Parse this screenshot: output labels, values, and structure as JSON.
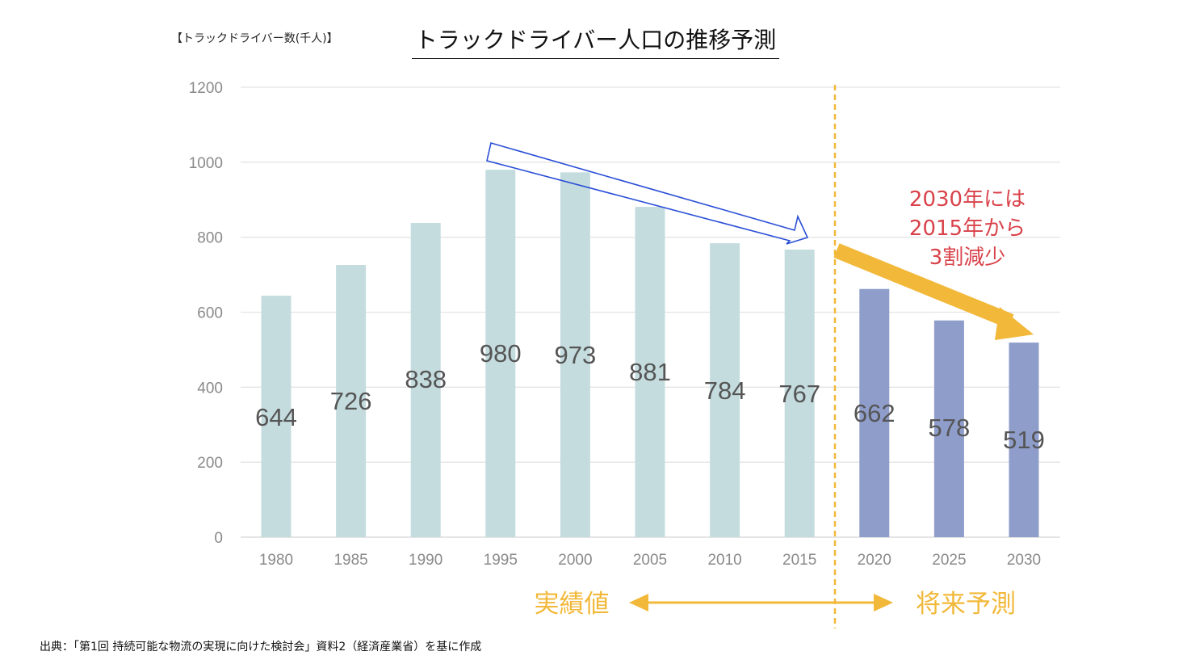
{
  "unit_label": "【トラックドライバー数(千人)】",
  "title": "トラックドライバー人口の推移予測",
  "source": "出典：「第1回 持続可能な物流の実現に向けた検討会」資料2（経済産業省）を基に作成",
  "annotation": [
    "2030年には",
    "2015年から",
    "3割減少"
  ],
  "sections": {
    "actual": "実績値",
    "forecast": "将来予測"
  },
  "colors": {
    "actual": "#c5dcdf",
    "forecast": "#8f9dcb",
    "divider": "#f2b839",
    "annotation": "#d9424a",
    "trend_arrow": "#2b4fd6"
  },
  "chart_data": {
    "type": "bar",
    "categories": [
      "1980",
      "1985",
      "1990",
      "1995",
      "2000",
      "2005",
      "2010",
      "2015",
      "2020",
      "2025",
      "2030"
    ],
    "values": [
      644,
      726,
      838,
      980,
      973,
      881,
      784,
      767,
      662,
      578,
      519
    ],
    "value_labels": [
      "644",
      "726",
      "838",
      "980",
      "973",
      "881",
      "784",
      "767",
      "662",
      "578",
      "519"
    ],
    "kind": [
      "actual",
      "actual",
      "actual",
      "actual",
      "actual",
      "actual",
      "actual",
      "actual",
      "forecast",
      "forecast",
      "forecast"
    ],
    "ylim": [
      0,
      1200
    ],
    "yticks": [
      0,
      200,
      400,
      600,
      800,
      1000,
      1200
    ],
    "ytick_labels": [
      "0",
      "200",
      "400",
      "600",
      "800",
      "1000",
      "1200"
    ],
    "grid": true,
    "title": "トラックドライバー人口の推移予測",
    "ylabel": "【トラックドライバー数(千人)】",
    "xlabel": ""
  }
}
